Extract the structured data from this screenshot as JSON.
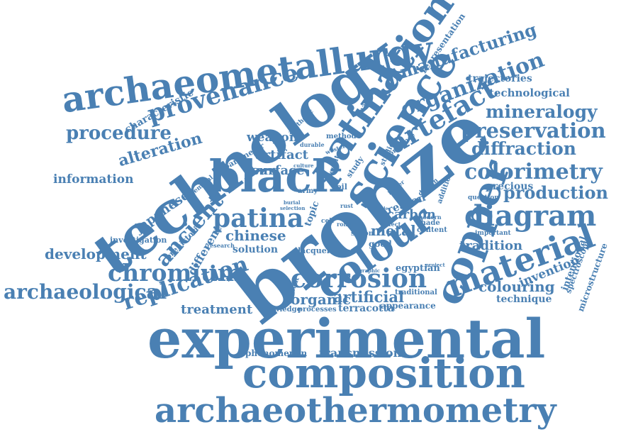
{
  "colors": {
    "word": "#4a80b3",
    "background": "#ffffff"
  },
  "words": [
    "archaeometallurgy",
    "provenance",
    "technology",
    "patination",
    "science",
    "manufacturing",
    "representation",
    "organization",
    "artefact",
    "trajectories",
    "technological",
    "characteristic",
    "procedure",
    "alteration",
    "mineralogy",
    "preservation",
    "multidisciplinary",
    "diffraction",
    "black",
    "bronze",
    "colorimetry",
    "weapon",
    "aesthetic",
    "method",
    "analysis",
    "parameter",
    "artifact",
    "surface",
    "information",
    "chemical",
    "colour",
    "copper",
    "diagram",
    "production",
    "precious",
    "patina",
    "ancient",
    "japanese",
    "different",
    "prehistoric",
    "chinese",
    "solution",
    "investigation",
    "development",
    "chromium",
    "replication",
    "archaeological",
    "corrosion",
    "material",
    "tradition",
    "invention",
    "intentional",
    "spectroscopy",
    "microstructure",
    "colouring",
    "technique",
    "organic",
    "artificial",
    "traditional",
    "egyptian",
    "treatment",
    "knowledge",
    "processes",
    "terracotta",
    "appearance",
    "experimental",
    "phenomenon",
    "transmission",
    "composition",
    "archaeothermometry",
    "carbon",
    "metal",
    "reason",
    "shade",
    "content",
    "design",
    "addition",
    "question",
    "important",
    "roman",
    "saxon",
    "lacquer",
    "soil",
    "army",
    "topic",
    "rust",
    "durable",
    "western",
    "result",
    "study",
    "studies",
    "presence",
    "better",
    "variety",
    "culture",
    "research",
    "cell",
    "effect",
    "good",
    "graphic",
    "present",
    "selection",
    "knowledge",
    "burial",
    "single",
    "modern",
    "project"
  ]
}
